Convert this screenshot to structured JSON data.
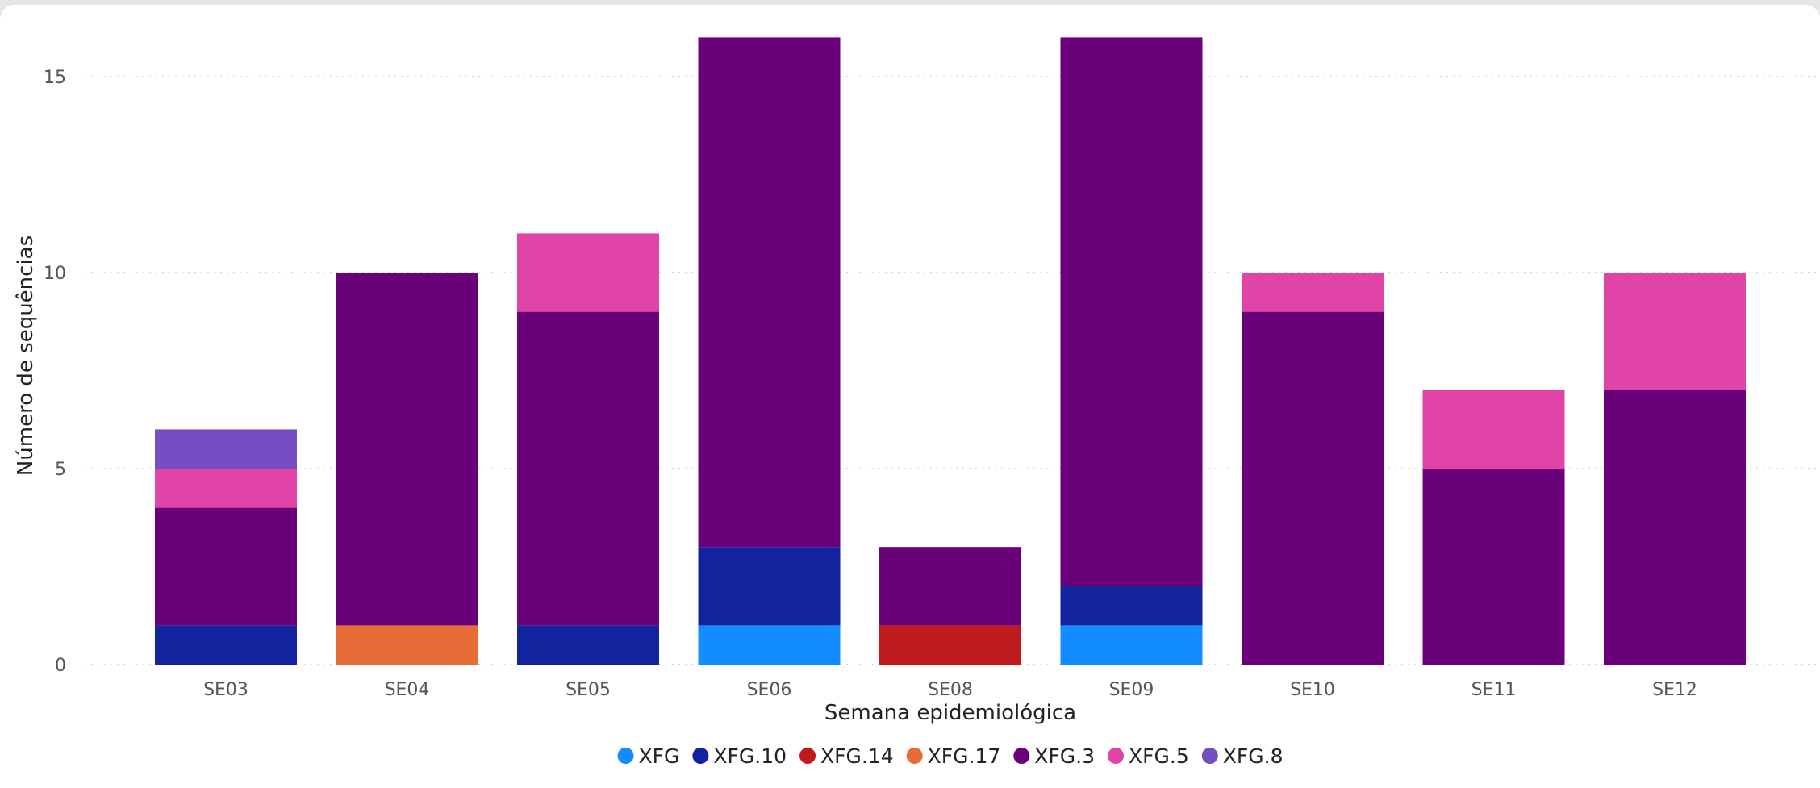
{
  "chart_data": {
    "type": "bar",
    "stacked": true,
    "title": "",
    "xlabel": "Semana epidemiológica",
    "ylabel": "Número de sequências",
    "ylim": [
      0,
      16
    ],
    "yticks": [
      0,
      5,
      10,
      15
    ],
    "grid": true,
    "legend_position": "bottom-center",
    "categories": [
      "SE03",
      "SE04",
      "SE05",
      "SE06",
      "SE08",
      "SE09",
      "SE10",
      "SE11",
      "SE12"
    ],
    "series": [
      {
        "name": "XFG",
        "color": "#118dff",
        "values": [
          0,
          0,
          0,
          1,
          0,
          1,
          0,
          0,
          0
        ]
      },
      {
        "name": "XFG.10",
        "color": "#12239e",
        "values": [
          1,
          0,
          1,
          2,
          0,
          1,
          0,
          0,
          0
        ]
      },
      {
        "name": "XFG.14",
        "color": "#bf1a1e",
        "values": [
          0,
          0,
          0,
          0,
          1,
          0,
          0,
          0,
          0
        ]
      },
      {
        "name": "XFG.17",
        "color": "#e66c37",
        "values": [
          0,
          1,
          0,
          0,
          0,
          0,
          0,
          0,
          0
        ]
      },
      {
        "name": "XFG.3",
        "color": "#6b007b",
        "values": [
          3,
          9,
          8,
          13,
          2,
          14,
          9,
          5,
          7
        ]
      },
      {
        "name": "XFG.5",
        "color": "#e044a7",
        "values": [
          1,
          0,
          2,
          0,
          0,
          0,
          1,
          2,
          3
        ]
      },
      {
        "name": "XFG.8",
        "color": "#744ec2",
        "values": [
          1,
          0,
          0,
          0,
          0,
          0,
          0,
          0,
          0
        ]
      }
    ]
  }
}
